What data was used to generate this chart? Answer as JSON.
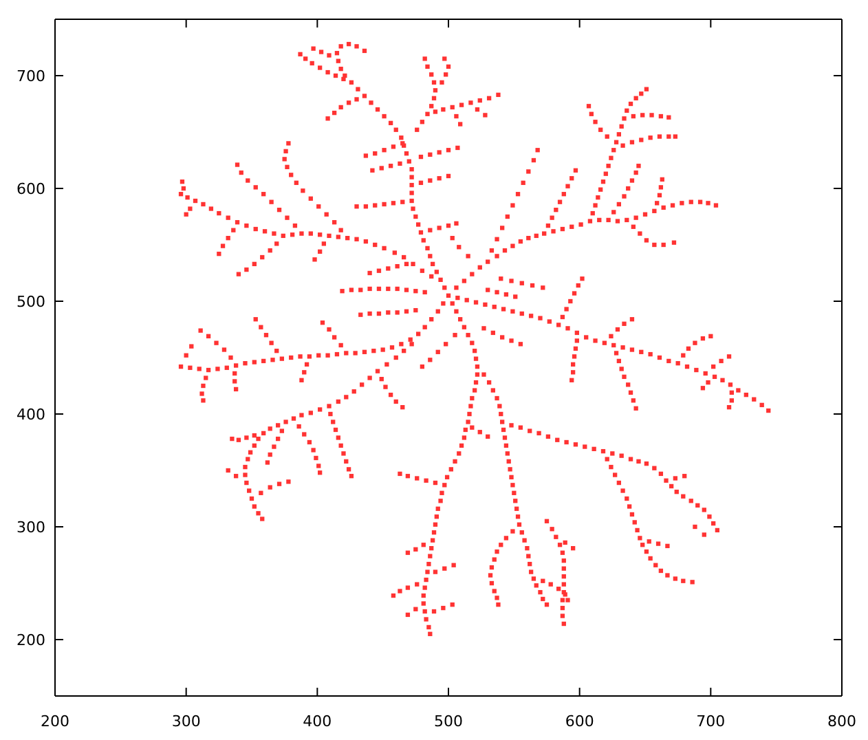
{
  "chart_data": {
    "type": "scatter",
    "marker": "square",
    "xlim": [
      200,
      800
    ],
    "xticks": [
      200,
      300,
      400,
      500,
      600,
      700,
      800
    ],
    "ylim": [
      150,
      750
    ],
    "yticks": [
      200,
      300,
      400,
      500,
      600,
      700
    ],
    "series": [
      {
        "color": "#ff3333",
        "x": [
          500,
          497,
          494,
          491,
          488,
          486,
          484,
          481,
          479,
          477,
          475,
          473,
          472,
          472,
          472,
          472,
          472,
          470,
          468,
          466,
          464,
          460,
          456,
          451,
          446,
          441,
          436,
          431,
          426,
          421,
          418,
          416,
          415,
          418
        ],
        "values": [
          505,
          512,
          519,
          526,
          533,
          540,
          547,
          554,
          561,
          568,
          575,
          582,
          589,
          596,
          603,
          610,
          617,
          624,
          631,
          638,
          645,
          652,
          658,
          664,
          670,
          676,
          682,
          688,
          694,
          700,
          706,
          713,
          720,
          726
        ]
      },
      {
        "color": "#ff3333",
        "x": [
          420,
          414,
          408,
          402,
          396,
          391,
          387,
          430,
          424,
          418,
          413,
          408,
          424,
          430,
          436,
          409,
          403,
          397
        ],
        "values": [
          697,
          700,
          703,
          707,
          711,
          715,
          719,
          679,
          676,
          672,
          667,
          662,
          728,
          726,
          722,
          718,
          721,
          724
        ]
      },
      {
        "color": "#ff3333",
        "x": [
          476,
          480,
          484,
          487,
          489,
          490,
          489,
          487,
          484,
          482,
          495,
          498,
          500,
          497,
          490,
          496,
          503,
          510,
          517,
          524,
          531,
          538,
          522,
          528,
          506,
          509
        ],
        "values": [
          652,
          659,
          666,
          673,
          680,
          687,
          694,
          701,
          708,
          715,
          694,
          701,
          708,
          715,
          668,
          670,
          672,
          674,
          676,
          678,
          680,
          683,
          670,
          665,
          664,
          657
        ]
      },
      {
        "color": "#ff3333",
        "x": [
          487,
          480,
          473,
          466,
          459,
          451,
          444,
          437,
          430,
          423,
          416,
          409,
          402,
          395,
          388,
          381,
          374,
          367,
          360,
          353,
          346,
          339,
          332,
          325,
          319,
          313,
          307,
          301,
          296
        ],
        "values": [
          522,
          527,
          533,
          539,
          543,
          547,
          550,
          553,
          555,
          556,
          557,
          558,
          559,
          560,
          560,
          559,
          558,
          560,
          562,
          564,
          567,
          570,
          574,
          578,
          582,
          586,
          589,
          592,
          595
        ]
      },
      {
        "color": "#ff3333",
        "x": [
          418,
          413,
          407,
          401,
          395,
          389,
          384,
          380,
          377,
          375,
          376,
          378,
          383,
          377,
          371,
          365,
          359,
          353,
          347,
          342,
          339,
          369,
          364,
          358,
          352,
          346,
          340,
          336,
          332,
          328,
          325,
          405,
          402,
          398,
          303,
          300,
          298,
          297
        ],
        "values": [
          563,
          570,
          577,
          584,
          591,
          598,
          605,
          612,
          619,
          626,
          633,
          640,
          567,
          574,
          581,
          588,
          595,
          601,
          607,
          614,
          621,
          551,
          545,
          539,
          533,
          528,
          524,
          563,
          556,
          549,
          542,
          551,
          544,
          537,
          582,
          577,
          600,
          606
        ]
      },
      {
        "color": "#ff3333",
        "x": [
          496,
          492,
          487,
          482,
          477,
          471,
          464,
          457,
          450,
          443,
          436,
          429,
          422,
          415,
          408,
          401,
          394,
          387,
          380,
          373,
          366,
          359,
          352,
          345,
          338,
          331,
          324,
          317,
          310,
          303,
          296
        ],
        "values": [
          498,
          491,
          484,
          477,
          471,
          466,
          462,
          459,
          457,
          456,
          455,
          454,
          454,
          453,
          452,
          452,
          451,
          451,
          450,
          449,
          448,
          447,
          446,
          445,
          443,
          441,
          440,
          439,
          440,
          441,
          442
        ]
      },
      {
        "color": "#ff3333",
        "x": [
          334,
          329,
          323,
          317,
          311,
          369,
          365,
          361,
          357,
          353,
          418,
          413,
          409,
          404,
          337,
          337,
          338,
          315,
          313,
          312,
          313,
          392,
          390,
          388,
          300,
          304
        ],
        "values": [
          450,
          457,
          463,
          469,
          474,
          456,
          463,
          470,
          477,
          484,
          461,
          468,
          475,
          481,
          436,
          429,
          422,
          432,
          425,
          418,
          412,
          444,
          437,
          430,
          452,
          460
        ]
      },
      {
        "color": "#ff3333",
        "x": [
          472,
          466,
          460,
          453,
          446,
          440,
          434,
          428,
          422,
          416,
          409,
          402,
          395,
          388,
          382,
          376,
          370,
          364,
          359,
          355,
          352,
          349,
          347,
          345,
          345,
          346,
          348,
          350,
          352,
          355,
          358
        ],
        "values": [
          462,
          456,
          450,
          444,
          438,
          432,
          426,
          420,
          415,
          411,
          407,
          404,
          401,
          399,
          396,
          393,
          390,
          387,
          383,
          378,
          372,
          366,
          360,
          353,
          346,
          339,
          332,
          325,
          318,
          312,
          307
        ]
      },
      {
        "color": "#ff3333",
        "x": [
          410,
          412,
          414,
          416,
          418,
          420,
          422,
          424,
          426,
          386,
          390,
          394,
          397,
          399,
          401,
          402,
          352,
          346,
          340,
          335,
          449,
          452,
          456,
          460,
          465,
          357,
          364,
          371,
          378,
          338,
          332,
          373,
          370,
          367,
          364,
          362
        ],
        "values": [
          400,
          393,
          386,
          379,
          372,
          365,
          358,
          351,
          345,
          389,
          382,
          375,
          368,
          361,
          354,
          348,
          381,
          379,
          377,
          378,
          431,
          424,
          417,
          411,
          406,
          330,
          335,
          338,
          340,
          345,
          350,
          385,
          378,
          371,
          364,
          357
        ]
      },
      {
        "color": "#ff3333",
        "x": [
          503,
          506,
          509,
          512,
          515,
          518,
          520,
          521,
          522,
          522,
          521,
          520,
          518,
          517,
          516,
          515,
          513,
          512,
          510,
          508,
          505,
          502,
          499,
          497,
          495,
          494,
          492,
          491,
          490,
          489,
          488,
          487,
          486,
          485,
          484,
          483,
          482,
          481,
          481,
          482,
          483,
          485,
          486
        ],
        "values": [
          498,
          491,
          484,
          477,
          470,
          463,
          456,
          449,
          442,
          435,
          428,
          421,
          414,
          407,
          400,
          393,
          386,
          379,
          372,
          365,
          358,
          351,
          344,
          337,
          330,
          323,
          316,
          309,
          302,
          295,
          288,
          281,
          274,
          267,
          260,
          253,
          246,
          239,
          232,
          225,
          218,
          211,
          205
        ]
      },
      {
        "color": "#ff3333",
        "x": [
          490,
          483,
          476,
          469,
          463,
          481,
          475,
          469,
          476,
          469,
          463,
          458,
          475,
          469,
          518,
          524,
          530
        ],
        "values": [
          339,
          341,
          343,
          345,
          347,
          284,
          280,
          277,
          249,
          246,
          243,
          239,
          227,
          222,
          388,
          384,
          380
        ]
      },
      {
        "color": "#ff3333",
        "x": [
          527,
          531,
          534,
          537,
          539,
          540,
          541,
          542,
          543,
          544,
          545,
          546,
          547,
          548,
          549,
          550,
          551,
          552,
          553,
          554,
          556,
          558,
          560,
          561,
          562,
          563,
          565,
          567,
          570,
          572,
          575
        ],
        "values": [
          435,
          428,
          421,
          414,
          407,
          400,
          393,
          386,
          379,
          372,
          365,
          358,
          351,
          344,
          337,
          330,
          323,
          316,
          309,
          302,
          295,
          288,
          281,
          274,
          267,
          260,
          254,
          248,
          242,
          236,
          231
        ]
      },
      {
        "color": "#ff3333",
        "x": [
          572,
          578,
          584,
          589,
          591,
          549,
          544,
          540,
          537,
          535,
          533,
          532,
          533,
          535,
          537,
          538,
          575,
          579,
          582,
          585,
          587,
          588,
          588,
          588,
          588,
          588,
          587,
          587,
          587,
          588,
          589,
          595
        ],
        "values": [
          252,
          249,
          245,
          240,
          235,
          296,
          290,
          284,
          278,
          271,
          264,
          257,
          250,
          243,
          237,
          231,
          305,
          298,
          291,
          284,
          277,
          270,
          263,
          256,
          249,
          242,
          235,
          228,
          221,
          214,
          286,
          281
        ]
      },
      {
        "color": "#ff3333",
        "x": [
          548,
          555,
          562,
          569,
          576,
          583,
          590,
          597,
          604,
          611,
          618,
          625,
          632,
          639,
          645,
          651,
          657,
          662,
          666,
          670,
          674,
          679,
          685,
          690,
          695,
          699,
          702,
          705
        ],
        "values": [
          390,
          388,
          385,
          383,
          380,
          377,
          375,
          373,
          371,
          369,
          367,
          365,
          363,
          360,
          358,
          356,
          352,
          347,
          341,
          336,
          331,
          327,
          323,
          319,
          315,
          309,
          303,
          297
        ]
      },
      {
        "color": "#ff3333",
        "x": [
          621,
          624,
          627,
          630,
          633,
          636,
          638,
          640,
          642,
          644,
          646,
          648,
          651,
          654,
          658,
          662,
          667,
          673,
          679,
          686,
          653,
          660,
          667,
          673,
          680,
          688,
          695
        ],
        "values": [
          360,
          353,
          346,
          339,
          332,
          325,
          318,
          311,
          304,
          297,
          290,
          284,
          278,
          272,
          266,
          261,
          257,
          254,
          252,
          251,
          287,
          285,
          283,
          343,
          345,
          300,
          293
        ]
      },
      {
        "color": "#ff3333",
        "x": [
          507,
          514,
          521,
          528,
          535,
          542,
          549,
          556,
          563,
          570,
          577,
          584,
          591,
          598,
          605,
          612,
          619,
          626,
          633,
          640,
          647,
          654,
          661,
          668,
          675,
          682,
          689,
          696,
          703,
          709,
          715,
          721,
          727,
          733,
          739,
          744
        ],
        "values": [
          503,
          501,
          499,
          497,
          495,
          493,
          491,
          489,
          487,
          485,
          482,
          479,
          476,
          472,
          468,
          465,
          463,
          461,
          459,
          457,
          455,
          453,
          450,
          447,
          445,
          442,
          439,
          436,
          433,
          430,
          426,
          421,
          417,
          413,
          408,
          403
        ]
      },
      {
        "color": "#ff3333",
        "x": [
          679,
          683,
          688,
          694,
          700,
          702,
          708,
          714,
          628,
          630,
          632,
          634,
          637,
          639,
          641,
          643,
          598,
          597,
          596,
          595,
          595,
          594,
          716,
          716,
          714,
          698,
          694,
          587,
          590,
          593,
          596,
          599,
          602,
          624,
          629,
          634,
          640
        ],
        "values": [
          452,
          458,
          463,
          467,
          469,
          442,
          447,
          451,
          454,
          447,
          440,
          433,
          426,
          419,
          412,
          405,
          465,
          458,
          451,
          444,
          437,
          430,
          419,
          412,
          406,
          428,
          423,
          486,
          493,
          500,
          507,
          514,
          520,
          469,
          475,
          480,
          484
        ]
      },
      {
        "color": "#ff3333",
        "x": [
          506,
          512,
          518,
          524,
          530,
          537,
          543,
          549,
          555,
          561,
          567,
          573,
          580,
          587,
          594,
          601,
          608,
          615,
          622,
          629,
          636,
          643,
          650,
          657,
          664,
          671,
          678,
          685,
          692,
          698,
          704
        ],
        "values": [
          512,
          518,
          524,
          530,
          535,
          540,
          545,
          549,
          553,
          556,
          558,
          560,
          562,
          564,
          566,
          568,
          571,
          572,
          572,
          571,
          572,
          574,
          577,
          580,
          583,
          585,
          587,
          588,
          588,
          587,
          585
        ]
      },
      {
        "color": "#ff3333",
        "x": [
          641,
          646,
          651,
          657,
          664,
          672,
          576,
          579,
          582,
          585,
          588,
          591,
          594,
          597,
          626,
          630,
          634,
          637,
          640,
          643,
          645,
          659,
          661,
          662,
          663,
          533,
          537,
          541,
          545,
          549,
          553,
          557,
          561,
          565,
          568
        ],
        "values": [
          566,
          560,
          554,
          550,
          550,
          552,
          567,
          574,
          581,
          588,
          595,
          602,
          609,
          616,
          579,
          586,
          593,
          600,
          607,
          614,
          620,
          587,
          594,
          601,
          608,
          545,
          555,
          565,
          575,
          585,
          595,
          605,
          615,
          625,
          634
        ]
      },
      {
        "color": "#ff3333",
        "x": [
          610,
          612,
          614,
          616,
          618,
          620,
          622,
          624,
          626,
          628,
          630,
          632,
          634,
          636,
          639,
          643,
          647,
          651,
          621,
          616,
          612,
          609,
          607,
          641,
          648,
          655,
          662,
          668,
          633,
          640,
          647,
          654,
          661,
          668,
          673
        ],
        "values": [
          578,
          585,
          592,
          599,
          606,
          613,
          620,
          627,
          634,
          641,
          648,
          655,
          662,
          669,
          675,
          680,
          684,
          688,
          646,
          652,
          659,
          666,
          673,
          664,
          665,
          665,
          664,
          663,
          638,
          641,
          643,
          645,
          646,
          646,
          646
        ]
      },
      {
        "color": "#ff3333",
        "x": [
          465,
          458,
          451,
          444,
          437,
          430,
          463,
          456,
          449,
          442,
          486,
          493,
          500,
          506,
          479,
          486,
          493,
          500,
          419,
          426,
          433,
          440,
          447,
          454,
          461,
          468,
          475,
          482,
          433,
          440,
          447,
          454,
          461,
          468,
          475,
          527,
          534,
          541,
          548,
          555,
          540,
          548,
          556,
          564,
          572
        ],
        "values": [
          588,
          587,
          586,
          585,
          584,
          584,
          622,
          620,
          618,
          616,
          563,
          565,
          567,
          569,
          605,
          607,
          609,
          611,
          509,
          510,
          510,
          511,
          511,
          511,
          511,
          510,
          509,
          508,
          488,
          489,
          489,
          490,
          490,
          491,
          492,
          476,
          472,
          468,
          465,
          462,
          520,
          518,
          516,
          514,
          512
        ]
      },
      {
        "color": "#ff3333",
        "x": [
          440,
          447,
          454,
          461,
          468,
          505,
          498,
          492,
          486,
          480,
          530,
          537,
          544,
          551,
          515,
          508,
          503,
          465,
          458,
          451,
          444,
          437,
          479,
          486,
          493,
          500,
          507,
          490,
          497,
          504,
          489,
          496,
          503
        ],
        "values": [
          525,
          527,
          529,
          531,
          533,
          470,
          462,
          455,
          448,
          442,
          510,
          508,
          506,
          504,
          540,
          548,
          556,
          640,
          637,
          634,
          631,
          629,
          628,
          630,
          632,
          634,
          636,
          260,
          263,
          266,
          225,
          228,
          231
        ]
      }
    ]
  }
}
